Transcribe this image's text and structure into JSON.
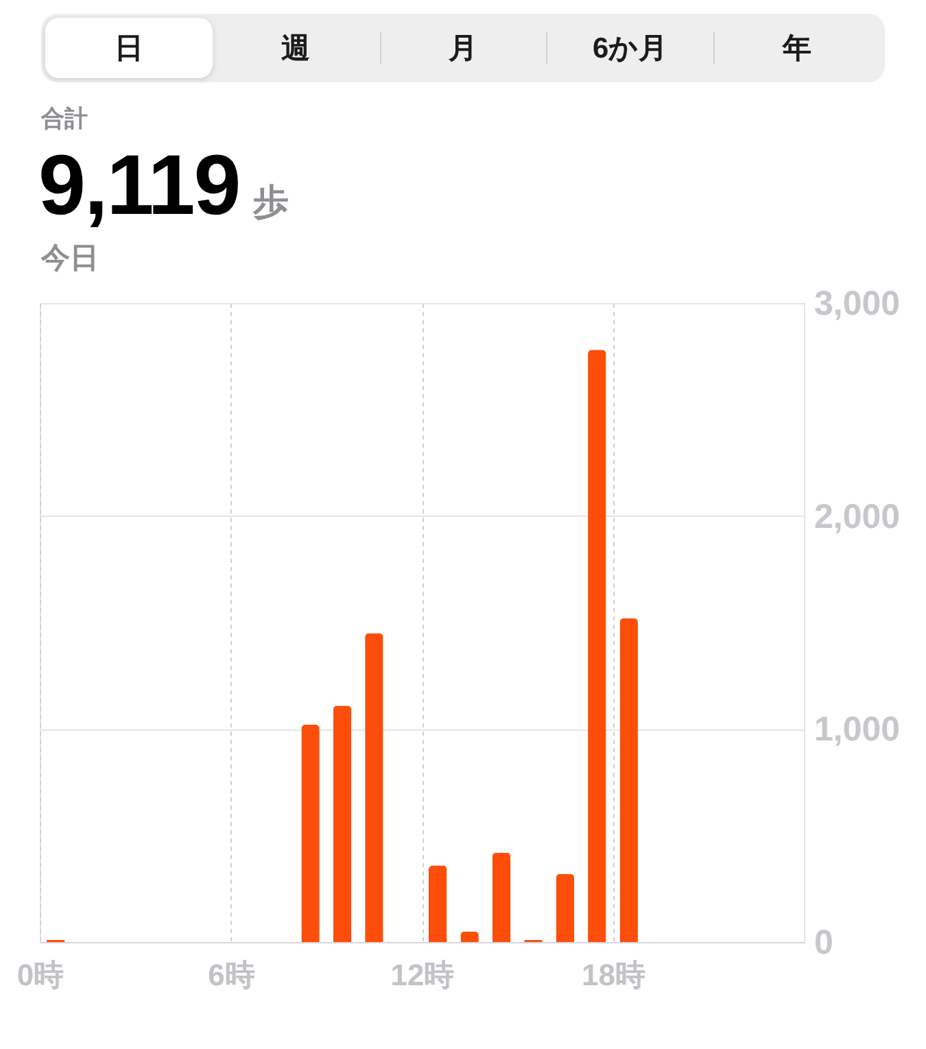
{
  "chart_data": {
    "type": "bar",
    "title": "合計",
    "subtitle": "9,119 歩",
    "annotations": [
      "日",
      "週",
      "月",
      "6か月",
      "年",
      "今日"
    ],
    "x": [
      0.5,
      8.5,
      9.5,
      10.5,
      12.5,
      13.5,
      14.5,
      15.5,
      16.5,
      17.5,
      18.5
    ],
    "values": [
      10,
      1020,
      1110,
      1450,
      360,
      50,
      420,
      10,
      320,
      2780,
      1520
    ],
    "color": "#fc4e0a",
    "xlim": [
      0,
      24
    ],
    "xticks": [
      {
        "value": 0,
        "label": "0時"
      },
      {
        "value": 6,
        "label": "6時"
      },
      {
        "value": 12,
        "label": "12時"
      },
      {
        "value": 18,
        "label": "18時"
      }
    ],
    "ylim": [
      0,
      3000
    ],
    "yticks": [
      0,
      {
        "value": 1000,
        "label": "1,000"
      },
      {
        "value": 2000,
        "label": "2,000"
      },
      {
        "value": 3000,
        "label": "3,000"
      }
    ],
    "grid": true
  }
}
